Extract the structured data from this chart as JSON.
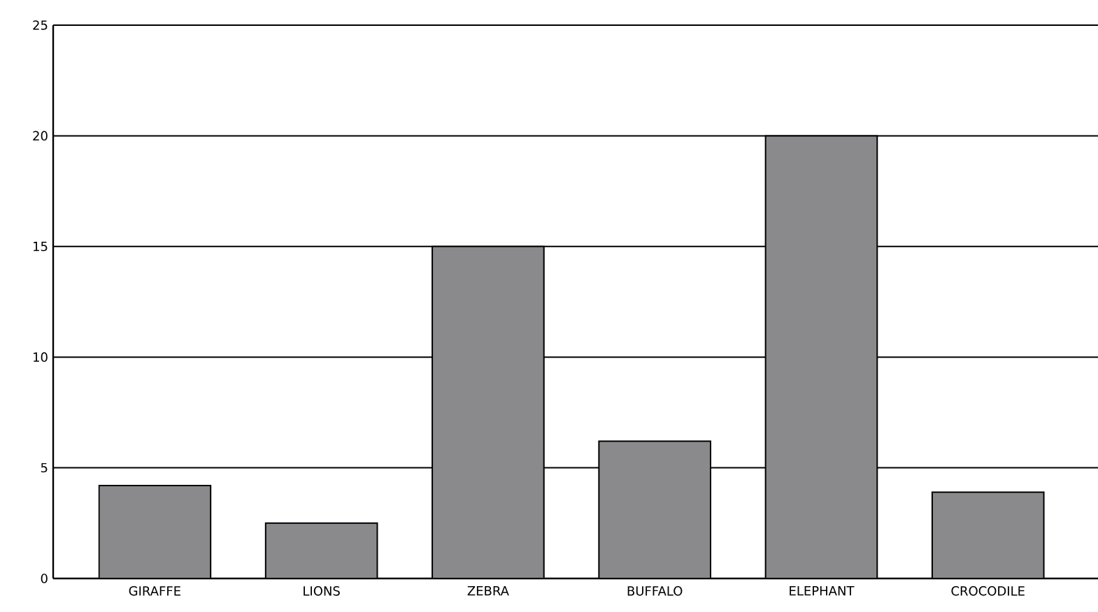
{
  "chart_data": {
    "type": "bar",
    "categories": [
      "GIRAFFE",
      "LIONS",
      "ZEBRA",
      "BUFFALO",
      "ELEPHANT",
      "CROCODILE"
    ],
    "values": [
      4.2,
      2.5,
      15,
      6.2,
      20,
      3.9
    ],
    "color": "#8a8a8c",
    "ylim": [
      0,
      25
    ],
    "yticks": [
      0,
      5,
      10,
      15,
      20,
      25
    ],
    "grid": "y"
  }
}
